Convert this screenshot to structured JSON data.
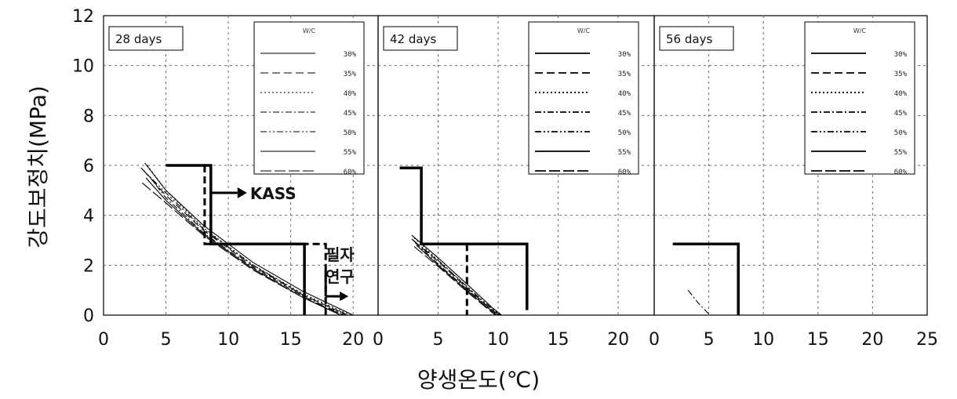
{
  "chart_data": {
    "type": "line",
    "ylabel": "강도보정치(MPa)",
    "xlabel": "양생온도(℃)",
    "ylim": [
      0,
      12
    ],
    "yticks": [
      "0",
      "2",
      "4",
      "6",
      "8",
      "10",
      "12"
    ],
    "grid": true,
    "legend_title": "W/C",
    "legend_entries": [
      "30%",
      "35%",
      "40%",
      "45%",
      "50%",
      "55%",
      "60%"
    ],
    "annotations": {
      "kass": "KASS",
      "study_line1": "필자",
      "study_line2": "연구"
    },
    "panels": [
      {
        "label": "28 days",
        "xlim": [
          0,
          22
        ],
        "xticks": [
          "0",
          "5",
          "10",
          "15",
          "20"
        ],
        "series": [
          {
            "name": "KASS",
            "style": "solid-bold",
            "points": [
              [
                5,
                6
              ],
              [
                8.6,
                6
              ],
              [
                8.6,
                2.85
              ],
              [
                16.1,
                2.85
              ],
              [
                16.1,
                0
              ]
            ]
          },
          {
            "name": "필자 연구",
            "style": "dashed-bold",
            "points": [
              [
                8.1,
                6
              ],
              [
                8.1,
                2.85
              ],
              [
                17.8,
                2.85
              ],
              [
                17.8,
                0
              ]
            ]
          },
          {
            "name": "30%",
            "style": "solid",
            "points": [
              [
                3.3,
                6.1
              ],
              [
                5,
                5.0
              ],
              [
                8,
                3.6
              ],
              [
                12,
                2.1
              ],
              [
                16,
                0.95
              ],
              [
                20,
                0
              ]
            ]
          },
          {
            "name": "35%",
            "style": "dash",
            "points": [
              [
                3.2,
                5.8
              ],
              [
                5,
                4.8
              ],
              [
                8,
                3.4
              ],
              [
                12,
                1.95
              ],
              [
                16,
                0.8
              ],
              [
                19.5,
                0
              ]
            ]
          },
          {
            "name": "40%",
            "style": "dot",
            "points": [
              [
                3.5,
                6.0
              ],
              [
                5,
                5.0
              ],
              [
                8,
                3.5
              ],
              [
                12,
                2.0
              ],
              [
                16,
                0.85
              ],
              [
                19.8,
                0
              ]
            ]
          },
          {
            "name": "45%",
            "style": "dashdot",
            "points": [
              [
                3.6,
                5.6
              ],
              [
                5,
                4.7
              ],
              [
                8,
                3.3
              ],
              [
                12,
                1.9
              ],
              [
                16,
                0.75
              ],
              [
                19.3,
                0
              ]
            ]
          },
          {
            "name": "50%",
            "style": "dashdotdot",
            "points": [
              [
                3.0,
                5.9
              ],
              [
                5,
                4.9
              ],
              [
                8,
                3.45
              ],
              [
                12,
                2.0
              ],
              [
                16,
                0.8
              ],
              [
                19.6,
                0
              ]
            ]
          },
          {
            "name": "55%",
            "style": "solid",
            "points": [
              [
                3.4,
                5.5
              ],
              [
                5,
                4.6
              ],
              [
                8,
                3.25
              ],
              [
                12,
                1.85
              ],
              [
                16,
                0.7
              ],
              [
                19.0,
                0
              ]
            ]
          },
          {
            "name": "60%",
            "style": "longdash",
            "points": [
              [
                3.1,
                5.3
              ],
              [
                5,
                4.5
              ],
              [
                8,
                3.2
              ],
              [
                12,
                1.8
              ],
              [
                16,
                0.7
              ],
              [
                19.2,
                0
              ]
            ]
          }
        ]
      },
      {
        "label": "42 days",
        "xlim": [
          0,
          23
        ],
        "xticks": [
          "0",
          "5",
          "10",
          "15",
          "20"
        ],
        "series": [
          {
            "name": "KASS",
            "style": "solid-bold",
            "points": [
              [
                1.8,
                5.9
              ],
              [
                3.6,
                5.9
              ],
              [
                3.6,
                2.85
              ],
              [
                12.4,
                2.85
              ],
              [
                12.4,
                0.2
              ]
            ]
          },
          {
            "name": "필자 연구",
            "style": "dashed-bold",
            "points": [
              [
                7.4,
                2.85
              ],
              [
                7.4,
                0
              ]
            ]
          },
          {
            "name": "30%",
            "style": "solid",
            "points": [
              [
                2.8,
                3.2
              ],
              [
                5,
                2.3
              ],
              [
                7.5,
                1.2
              ],
              [
                9.5,
                0.3
              ],
              [
                10.3,
                0
              ]
            ]
          },
          {
            "name": "35%",
            "style": "dash",
            "points": [
              [
                2.9,
                3.0
              ],
              [
                5,
                2.15
              ],
              [
                7.5,
                1.05
              ],
              [
                9.5,
                0.2
              ],
              [
                10.1,
                0
              ]
            ]
          },
          {
            "name": "40%",
            "style": "dot",
            "points": [
              [
                3.0,
                3.1
              ],
              [
                5,
                2.2
              ],
              [
                7.5,
                1.1
              ],
              [
                9.5,
                0.25
              ],
              [
                10.2,
                0
              ]
            ]
          },
          {
            "name": "45%",
            "style": "dashdot",
            "points": [
              [
                3.1,
                2.9
              ],
              [
                5,
                2.05
              ],
              [
                7.5,
                1.0
              ],
              [
                9.5,
                0.2
              ],
              [
                10.0,
                0
              ]
            ]
          },
          {
            "name": "50%",
            "style": "dashdotdot",
            "points": [
              [
                2.8,
                3.05
              ],
              [
                5,
                2.2
              ],
              [
                7.5,
                1.1
              ],
              [
                9.5,
                0.25
              ],
              [
                10.2,
                0
              ]
            ]
          },
          {
            "name": "55%",
            "style": "solid",
            "points": [
              [
                3.2,
                2.8
              ],
              [
                5,
                2.0
              ],
              [
                7.5,
                0.95
              ],
              [
                9.5,
                0.15
              ],
              [
                9.9,
                0
              ]
            ]
          },
          {
            "name": "60%",
            "style": "longdash",
            "points": [
              [
                3.0,
                2.75
              ],
              [
                5,
                1.95
              ],
              [
                7.5,
                0.9
              ],
              [
                9.5,
                0.1
              ],
              [
                9.8,
                0
              ]
            ]
          }
        ]
      },
      {
        "label": "56 days",
        "xlim": [
          0,
          25
        ],
        "xticks": [
          "0",
          "5",
          "10",
          "15",
          "20",
          "25"
        ],
        "series": [
          {
            "name": "KASS",
            "style": "solid-bold",
            "points": [
              [
                1.7,
                2.85
              ],
              [
                7.7,
                2.85
              ],
              [
                7.7,
                0
              ]
            ]
          },
          {
            "name": "30%",
            "style": "dashdot",
            "points": [
              [
                3.1,
                1.0
              ],
              [
                4.0,
                0.5
              ],
              [
                5.1,
                0
              ]
            ]
          }
        ]
      }
    ]
  }
}
